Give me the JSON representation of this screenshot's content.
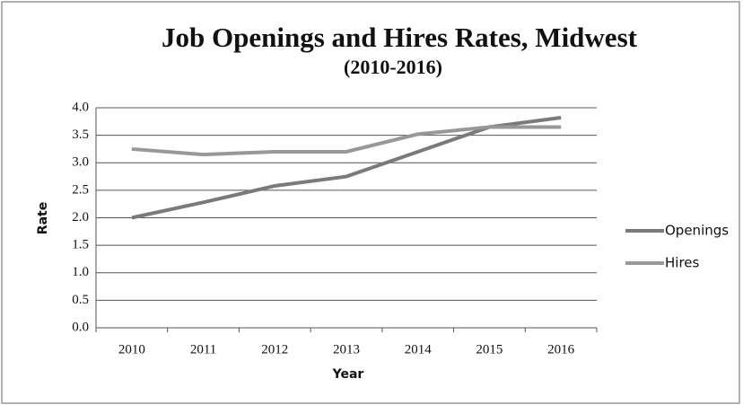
{
  "chart_data": {
    "type": "line",
    "title": "Job Openings and Hires Rates, Midwest",
    "subtitle": "(2010-2016)",
    "x_label": "Year",
    "y_label": "Rate",
    "categories": [
      "2010",
      "2011",
      "2012",
      "2013",
      "2014",
      "2015",
      "2016"
    ],
    "series": [
      {
        "name": "Openings",
        "color": "#7a7a7a",
        "values": [
          2.0,
          2.28,
          2.58,
          2.75,
          3.2,
          3.65,
          3.82
        ]
      },
      {
        "name": "Hires",
        "color": "#989898",
        "values": [
          3.25,
          3.15,
          3.2,
          3.2,
          3.52,
          3.65,
          3.65
        ]
      }
    ],
    "ylim": [
      0,
      4
    ],
    "yticks": [
      {
        "value": 0,
        "label": "0.0"
      },
      {
        "value": 0.5,
        "label": "0.5"
      },
      {
        "value": 1,
        "label": "1.0"
      },
      {
        "value": 1.5,
        "label": "1.5"
      },
      {
        "value": 2,
        "label": "2.0"
      },
      {
        "value": 2.5,
        "label": "2.5"
      },
      {
        "value": 3,
        "label": "3.0"
      },
      {
        "value": 3.5,
        "label": "3.5"
      },
      {
        "value": 4,
        "label": "4.0"
      }
    ],
    "grid": true,
    "legend": "right"
  }
}
